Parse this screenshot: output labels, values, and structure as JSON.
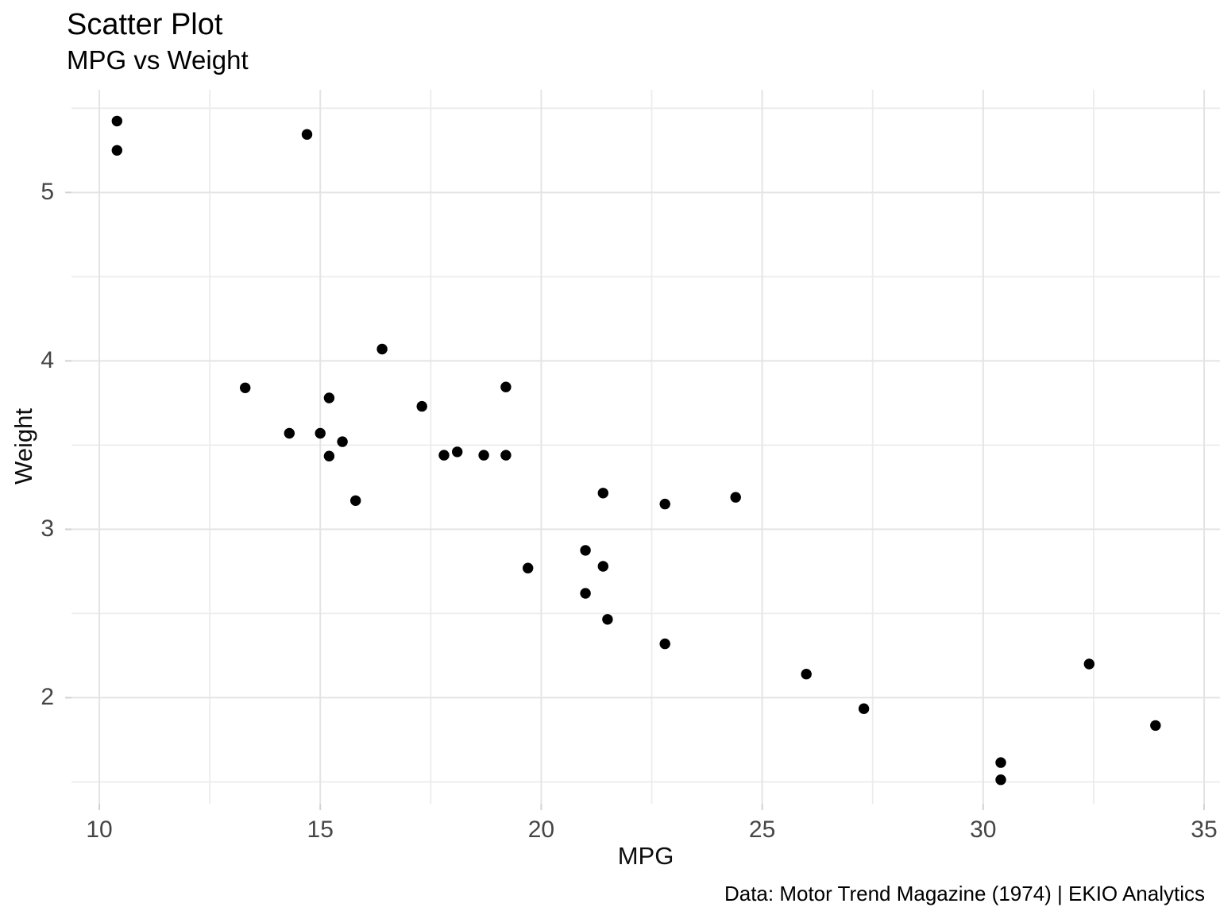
{
  "colors": {
    "background": "#ffffff",
    "point": "#000000",
    "grid_major": "#e4e4e4",
    "grid_minor": "#ececec",
    "tick_mark": "#d2d2d2",
    "axis_text": "#454545",
    "title_text": "#000000"
  },
  "chart_data": {
    "type": "scatter",
    "title": "Scatter Plot",
    "subtitle": "MPG vs Weight",
    "xlabel": "MPG",
    "ylabel": "Weight",
    "caption": "Data: Motor Trend Magazine (1974) | EKIO Analytics",
    "legend": "none",
    "grid": true,
    "xlim": [
      9.37,
      35.36
    ],
    "ylim": [
      1.37,
      5.61
    ],
    "x_ticks": [
      10,
      15,
      20,
      25,
      30,
      35
    ],
    "x_minor_ticks": [
      12.5,
      17.5,
      22.5,
      27.5,
      32.5
    ],
    "y_ticks": [
      2,
      3,
      4,
      5
    ],
    "y_minor_ticks": [
      1.5,
      2.5,
      3.5,
      4.5,
      5.5
    ],
    "point_radius_px": 6.7,
    "points": [
      [
        21.0,
        2.62
      ],
      [
        21.0,
        2.875
      ],
      [
        22.8,
        2.32
      ],
      [
        21.4,
        3.215
      ],
      [
        18.7,
        3.44
      ],
      [
        18.1,
        3.46
      ],
      [
        14.3,
        3.57
      ],
      [
        24.4,
        3.19
      ],
      [
        22.8,
        3.15
      ],
      [
        19.2,
        3.44
      ],
      [
        17.8,
        3.44
      ],
      [
        16.4,
        4.07
      ],
      [
        17.3,
        3.73
      ],
      [
        15.2,
        3.78
      ],
      [
        10.4,
        5.25
      ],
      [
        10.4,
        5.424
      ],
      [
        14.7,
        5.345
      ],
      [
        32.4,
        2.2
      ],
      [
        30.4,
        1.615
      ],
      [
        33.9,
        1.835
      ],
      [
        21.5,
        2.465
      ],
      [
        15.5,
        3.52
      ],
      [
        15.2,
        3.435
      ],
      [
        13.3,
        3.84
      ],
      [
        19.2,
        3.845
      ],
      [
        27.3,
        1.935
      ],
      [
        26.0,
        2.14
      ],
      [
        30.4,
        1.513
      ],
      [
        15.8,
        3.17
      ],
      [
        19.7,
        2.77
      ],
      [
        15.0,
        3.57
      ],
      [
        21.4,
        2.78
      ]
    ]
  }
}
